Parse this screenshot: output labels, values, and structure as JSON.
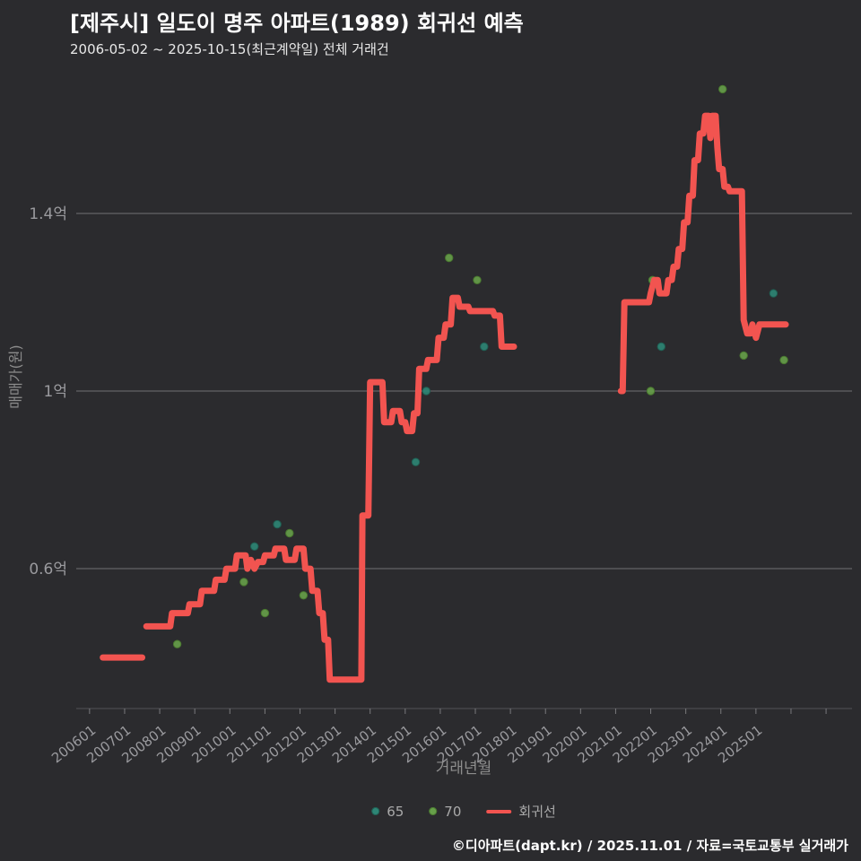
{
  "title": "[제주시] 일도이 명주 아파트(1989) 회귀선 예측",
  "subtitle": "2006-05-02 ~ 2025-10-15(최근계약일) 전체 거래건",
  "footer": "©디아파트(dapt.kr) / 2025.11.01 / 자료=국토교통부 실거래가",
  "colors": {
    "background": "#2b2b2e",
    "title": "#ffffff",
    "grid": "#707074",
    "tick": "#9a9a9e",
    "axis_label": "#8d8d8d",
    "series65": "#2e8676",
    "series65_stroke": "#1f5f53",
    "series70": "#67a04a",
    "series70_stroke": "#49782f",
    "regression": "#f25450"
  },
  "chart_data": {
    "type": "line",
    "title": "[제주시] 일도이 명주 아파트(1989) 회귀선 예측",
    "subtitle": "2006-05-02 ~ 2025-10-15(최근계약일) 전체 거래건",
    "xlabel": "거래년월",
    "ylabel": "매매가(원)",
    "grid": "horizontal",
    "legend_position": "bottom-center",
    "x_ticks": [
      "200601",
      "200701",
      "200801",
      "200901",
      "201001",
      "201101",
      "201201",
      "201301",
      "201401",
      "201501",
      "201601",
      "201701",
      "201801",
      "201901",
      "202001",
      "202101",
      "202201",
      "202301",
      "202401",
      "202501"
    ],
    "tick_year_start": 2006,
    "tick_year_end": 2027,
    "y_ticks": [
      {
        "value": 0.6,
        "label": "0.6억"
      },
      {
        "value": 1.0,
        "label": "1억"
      },
      {
        "value": 1.4,
        "label": "1.4억"
      }
    ],
    "x_range": [
      2005.62,
      2027.74
    ],
    "y_range": [
      0.285,
      1.699
    ],
    "unit": "억원",
    "series": [
      {
        "name": "65",
        "type": "scatter",
        "color": "#2e8676",
        "stroke": "#1f5f53",
        "points": [
          [
            2010.7,
            0.65
          ],
          [
            2011.35,
            0.7
          ],
          [
            2015.3,
            0.84
          ],
          [
            2015.6,
            1.0
          ],
          [
            2017.25,
            1.1
          ],
          [
            2022.15,
            1.24
          ],
          [
            2022.3,
            1.1
          ],
          [
            2025.5,
            1.22
          ]
        ]
      },
      {
        "name": "70",
        "type": "scatter",
        "color": "#67a04a",
        "stroke": "#49782f",
        "points": [
          [
            2008.5,
            0.43
          ],
          [
            2010.4,
            0.57
          ],
          [
            2011.0,
            0.5
          ],
          [
            2011.7,
            0.68
          ],
          [
            2012.1,
            0.54
          ],
          [
            2016.25,
            1.3
          ],
          [
            2017.05,
            1.25
          ],
          [
            2022.0,
            1.0
          ],
          [
            2022.05,
            1.25
          ],
          [
            2024.05,
            1.68
          ],
          [
            2024.65,
            1.08
          ],
          [
            2025.8,
            1.07
          ]
        ]
      },
      {
        "name": "회귀선",
        "type": "line",
        "color": "#f25450",
        "segments": [
          [
            [
              2006.38,
              0.4
            ],
            [
              2007.5,
              0.4
            ]
          ],
          [
            [
              2007.62,
              0.47
            ],
            [
              2008.3,
              0.47
            ],
            [
              2008.35,
              0.5
            ],
            [
              2008.8,
              0.5
            ],
            [
              2008.85,
              0.52
            ],
            [
              2009.15,
              0.52
            ],
            [
              2009.2,
              0.55
            ],
            [
              2009.55,
              0.55
            ],
            [
              2009.6,
              0.575
            ],
            [
              2009.85,
              0.575
            ],
            [
              2009.9,
              0.6
            ],
            [
              2010.15,
              0.6
            ],
            [
              2010.2,
              0.63
            ],
            [
              2010.45,
              0.63
            ],
            [
              2010.5,
              0.6
            ],
            [
              2010.6,
              0.62
            ],
            [
              2010.7,
              0.6
            ],
            [
              2010.8,
              0.615
            ],
            [
              2010.95,
              0.615
            ],
            [
              2011.0,
              0.63
            ],
            [
              2011.25,
              0.63
            ],
            [
              2011.3,
              0.645
            ],
            [
              2011.55,
              0.645
            ],
            [
              2011.6,
              0.62
            ],
            [
              2011.85,
              0.62
            ],
            [
              2011.9,
              0.645
            ],
            [
              2012.1,
              0.645
            ],
            [
              2012.15,
              0.6
            ],
            [
              2012.3,
              0.6
            ],
            [
              2012.35,
              0.55
            ],
            [
              2012.5,
              0.55
            ],
            [
              2012.55,
              0.5
            ],
            [
              2012.65,
              0.5
            ],
            [
              2012.7,
              0.44
            ],
            [
              2012.8,
              0.44
            ],
            [
              2012.85,
              0.35
            ],
            [
              2013.75,
              0.35
            ],
            [
              2013.78,
              0.72
            ],
            [
              2013.95,
              0.72
            ],
            [
              2014.0,
              1.02
            ],
            [
              2014.35,
              1.02
            ],
            [
              2014.4,
              0.93
            ],
            [
              2014.6,
              0.93
            ],
            [
              2014.65,
              0.955
            ],
            [
              2014.85,
              0.955
            ],
            [
              2014.9,
              0.93
            ],
            [
              2015.0,
              0.93
            ],
            [
              2015.05,
              0.91
            ],
            [
              2015.2,
              0.91
            ],
            [
              2015.25,
              0.95
            ],
            [
              2015.35,
              0.95
            ],
            [
              2015.4,
              1.05
            ],
            [
              2015.6,
              1.05
            ],
            [
              2015.65,
              1.07
            ],
            [
              2015.9,
              1.07
            ],
            [
              2015.95,
              1.12
            ],
            [
              2016.1,
              1.12
            ],
            [
              2016.15,
              1.15
            ],
            [
              2016.3,
              1.15
            ],
            [
              2016.35,
              1.21
            ],
            [
              2016.5,
              1.21
            ],
            [
              2016.55,
              1.19
            ],
            [
              2016.8,
              1.19
            ],
            [
              2016.85,
              1.18
            ],
            [
              2017.5,
              1.18
            ],
            [
              2017.55,
              1.17
            ],
            [
              2017.7,
              1.17
            ],
            [
              2017.75,
              1.1
            ],
            [
              2018.1,
              1.1
            ]
          ],
          [
            [
              2021.15,
              1.0
            ],
            [
              2021.2,
              1.0
            ],
            [
              2021.25,
              1.2
            ],
            [
              2021.95,
              1.2
            ],
            [
              2022.0,
              1.22
            ],
            [
              2022.1,
              1.25
            ],
            [
              2022.2,
              1.25
            ],
            [
              2022.25,
              1.22
            ],
            [
              2022.45,
              1.22
            ],
            [
              2022.5,
              1.25
            ],
            [
              2022.6,
              1.25
            ],
            [
              2022.65,
              1.28
            ],
            [
              2022.75,
              1.28
            ],
            [
              2022.8,
              1.32
            ],
            [
              2022.9,
              1.32
            ],
            [
              2022.95,
              1.38
            ],
            [
              2023.05,
              1.38
            ],
            [
              2023.1,
              1.44
            ],
            [
              2023.2,
              1.44
            ],
            [
              2023.25,
              1.52
            ],
            [
              2023.35,
              1.52
            ],
            [
              2023.4,
              1.58
            ],
            [
              2023.5,
              1.58
            ],
            [
              2023.55,
              1.62
            ],
            [
              2023.65,
              1.62
            ],
            [
              2023.7,
              1.57
            ],
            [
              2023.75,
              1.62
            ],
            [
              2023.85,
              1.62
            ],
            [
              2023.9,
              1.55
            ],
            [
              2023.95,
              1.5
            ],
            [
              2024.05,
              1.5
            ],
            [
              2024.1,
              1.46
            ],
            [
              2024.2,
              1.46
            ],
            [
              2024.25,
              1.45
            ],
            [
              2024.6,
              1.45
            ],
            [
              2024.65,
              1.16
            ],
            [
              2024.75,
              1.13
            ],
            [
              2024.85,
              1.13
            ],
            [
              2024.9,
              1.15
            ],
            [
              2025.0,
              1.12
            ],
            [
              2025.1,
              1.15
            ],
            [
              2025.85,
              1.15
            ]
          ]
        ]
      }
    ]
  }
}
